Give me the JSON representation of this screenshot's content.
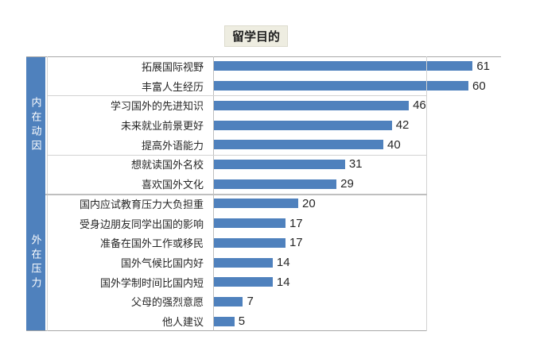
{
  "chart_data": {
    "type": "bar",
    "orientation": "horizontal",
    "title": "留学目的",
    "bar_color": "#4f81bd",
    "band_color": "#4f81bd",
    "xlim": [
      0,
      68
    ],
    "gridline_value": 50,
    "grid": "single vertical gridline at 50; no axis tick labels shown",
    "legend": "none",
    "groups": [
      {
        "label": "内在动因",
        "row_count": 7
      },
      {
        "label": "外在压力",
        "row_count": 7
      }
    ],
    "separator_after_rows": [
      2,
      5
    ],
    "group_boundary_after_row": 7,
    "rows": [
      {
        "group": "内在动因",
        "label": "拓展国际视野",
        "value": 61
      },
      {
        "group": "内在动因",
        "label": "丰富人生经历",
        "value": 60
      },
      {
        "group": "内在动因",
        "label": "学习国外的先进知识",
        "value": 46
      },
      {
        "group": "内在动因",
        "label": "未来就业前景更好",
        "value": 42
      },
      {
        "group": "内在动因",
        "label": "提高外语能力",
        "value": 40
      },
      {
        "group": "内在动因",
        "label": "想就读国外名校",
        "value": 31
      },
      {
        "group": "内在动因",
        "label": "喜欢国外文化",
        "value": 29
      },
      {
        "group": "外在压力",
        "label": "国内应试教育压力大负担重",
        "value": 20
      },
      {
        "group": "外在压力",
        "label": "受身边朋友同学出国的影响",
        "value": 17
      },
      {
        "group": "外在压力",
        "label": "准备在国外工作或移民",
        "value": 17
      },
      {
        "group": "外在压力",
        "label": "国外气候比国内好",
        "value": 14
      },
      {
        "group": "外在压力",
        "label": "国外学制时间比国内短",
        "value": 14
      },
      {
        "group": "外在压力",
        "label": "父母的强烈意愿",
        "value": 7
      },
      {
        "group": "外在压力",
        "label": "他人建议",
        "value": 5
      }
    ]
  }
}
